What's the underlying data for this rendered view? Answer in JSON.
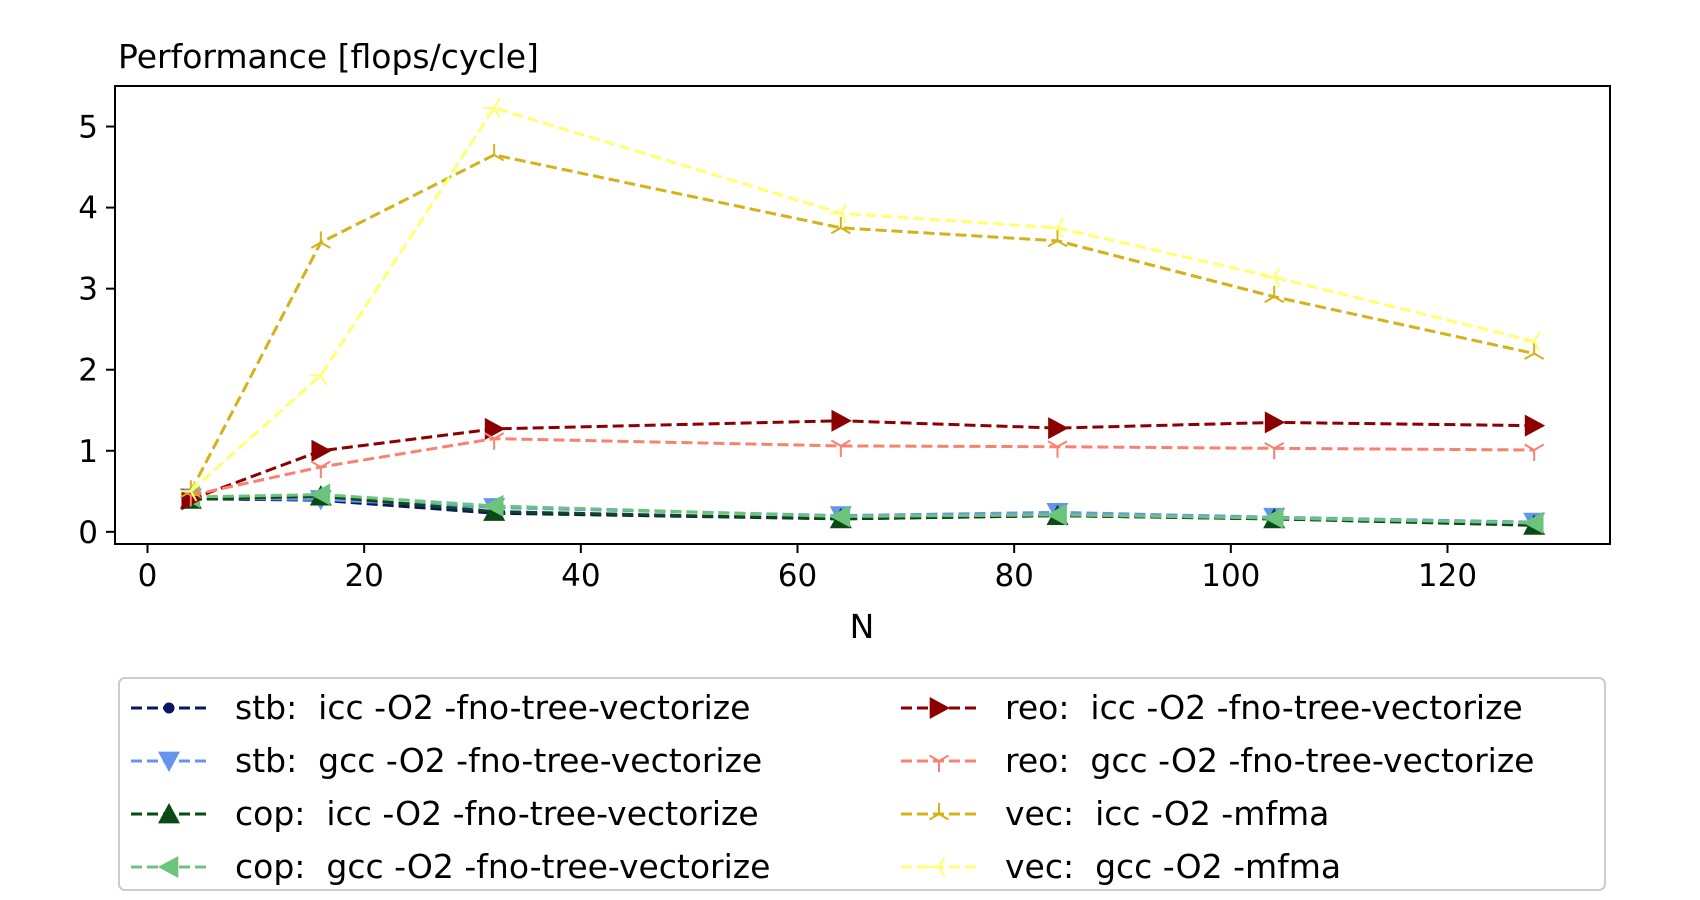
{
  "chart_data": {
    "type": "line",
    "title": "Performance [flops/cycle]",
    "xlabel": "N",
    "ylabel": "",
    "xlim": [
      -3,
      135
    ],
    "ylim": [
      -0.15,
      5.5
    ],
    "xticks": [
      0,
      20,
      40,
      60,
      80,
      100,
      120
    ],
    "yticks": [
      0,
      1,
      2,
      3,
      4,
      5
    ],
    "x": [
      4,
      16,
      32,
      64,
      84,
      104,
      128
    ],
    "legend_position": "bottom (below chart, two columns)",
    "grid": false,
    "series": [
      {
        "name": "stb:  icc -O2 -fno-tree-vectorize",
        "color": "#0d1464",
        "marker": "dot",
        "values": [
          0.41,
          0.39,
          0.23,
          0.16,
          0.2,
          0.16,
          0.09
        ]
      },
      {
        "name": "stb:  gcc -O2 -fno-tree-vectorize",
        "color": "#6495ed",
        "marker": "triangle-down",
        "values": [
          0.42,
          0.4,
          0.3,
          0.2,
          0.24,
          0.18,
          0.12
        ]
      },
      {
        "name": "cop:  icc -O2 -fno-tree-vectorize",
        "color": "#0a4a14",
        "marker": "triangle-up",
        "values": [
          0.4,
          0.44,
          0.25,
          0.16,
          0.2,
          0.16,
          0.08
        ]
      },
      {
        "name": "cop:  gcc -O2 -fno-tree-vectorize",
        "color": "#6cc47c",
        "marker": "triangle-left",
        "values": [
          0.43,
          0.46,
          0.32,
          0.19,
          0.21,
          0.17,
          0.11
        ]
      },
      {
        "name": "reo:  icc -O2 -fno-tree-vectorize",
        "color": "#8b0000",
        "marker": "triangle-right",
        "values": [
          0.4,
          1.0,
          1.27,
          1.37,
          1.28,
          1.35,
          1.31
        ]
      },
      {
        "name": "reo:  gcc -O2 -fno-tree-vectorize",
        "color": "#fa8072",
        "marker": "tri-down",
        "values": [
          0.45,
          0.8,
          1.15,
          1.06,
          1.05,
          1.03,
          1.01
        ]
      },
      {
        "name": "vec:  icc -O2 -mfma",
        "color": "#d4b21a",
        "marker": "tri-up",
        "values": [
          0.5,
          3.57,
          4.65,
          3.75,
          3.59,
          2.9,
          2.2
        ]
      },
      {
        "name": "vec:  gcc -O2 -mfma",
        "color": "#ffff70",
        "marker": "tri-left",
        "values": [
          0.5,
          1.93,
          5.23,
          3.93,
          3.75,
          3.14,
          2.35
        ]
      }
    ]
  }
}
